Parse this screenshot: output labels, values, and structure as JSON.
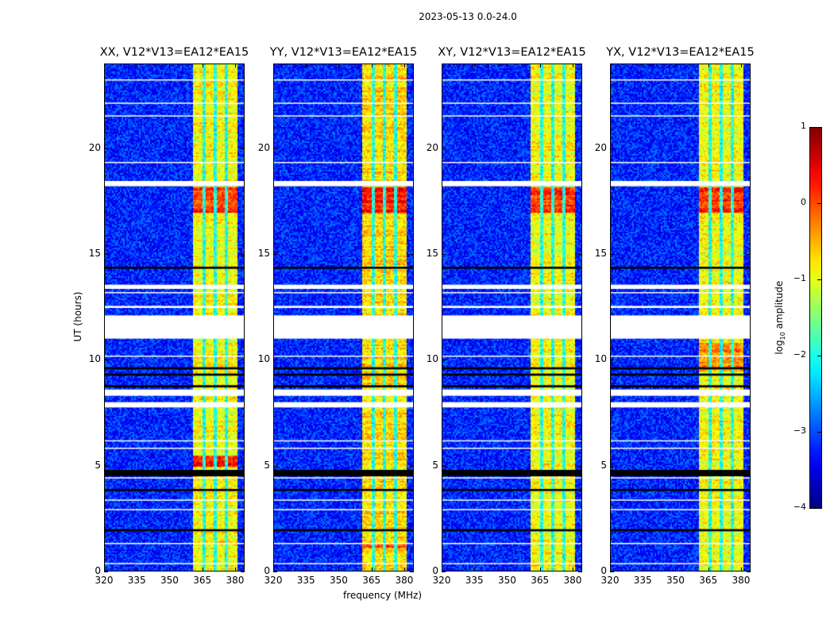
{
  "figure_title": "2023-05-13 0.0-24.0",
  "chart_data": {
    "type": "heatmap",
    "title": "2023-05-13 0.0-24.0",
    "xlabel": "frequency (MHz)",
    "ylabel": "UT (hours)",
    "xlim": [
      320,
      384.4
    ],
    "ylim": [
      0,
      24
    ],
    "xticks": [
      320,
      335,
      350,
      365,
      380
    ],
    "yticks": [
      0,
      5,
      10,
      15,
      20
    ],
    "colorbar": {
      "label_main": "log",
      "label_sub": "10",
      "label_rest": " amplitude",
      "range": [
        -4,
        1
      ],
      "ticks": [
        1,
        0,
        -1,
        -2,
        -3,
        -4
      ],
      "tick_labels": [
        "1",
        "0",
        "−1",
        "−2",
        "−3",
        "−4"
      ],
      "colormap": "jet"
    },
    "panels": [
      {
        "title": "XX, V12*V13=EA12*EA15",
        "band_level": -0.9,
        "hot_periods": [
          [
            17.0,
            18.2,
            0.1
          ],
          [
            5.0,
            5.5,
            0.2
          ]
        ]
      },
      {
        "title": "YY, V12*V13=EA12*EA15",
        "band_level": -0.7,
        "hot_periods": [
          [
            17.0,
            18.2,
            0.25
          ],
          [
            1.2,
            1.4,
            0.0
          ]
        ]
      },
      {
        "title": "XY, V12*V13=EA12*EA15",
        "band_level": -0.9,
        "hot_periods": [
          [
            17.0,
            18.2,
            0.15
          ]
        ]
      },
      {
        "title": "YX, V12*V13=EA12*EA15",
        "band_level": -0.9,
        "hot_periods": [
          [
            17.0,
            18.2,
            0.15
          ],
          [
            9.5,
            10.8,
            -0.3
          ]
        ]
      }
    ],
    "background_level": -3.2,
    "band_MHz": [
      360.7,
      380.4
    ],
    "band_notches_MHz": [
      365.5,
      370.5,
      375.6
    ],
    "flagged_hours_white": [
      [
        23.2,
        23.25
      ],
      [
        22.1,
        22.15
      ],
      [
        21.5,
        21.55
      ],
      [
        19.3,
        19.35
      ],
      [
        18.45,
        18.2
      ],
      [
        13.55,
        13.35
      ],
      [
        13.2,
        13.15
      ],
      [
        12.55,
        12.45
      ],
      [
        12.1,
        11.0
      ],
      [
        10.2,
        10.15
      ],
      [
        8.6,
        8.3
      ],
      [
        8.0,
        7.75
      ],
      [
        6.2,
        6.15
      ],
      [
        5.85,
        5.8
      ],
      [
        4.45,
        4.4
      ],
      [
        3.4,
        3.35
      ],
      [
        2.95,
        2.9
      ],
      [
        1.35,
        1.3
      ],
      [
        0.4,
        0.35
      ]
    ],
    "flagged_hours_black": [
      [
        18.3,
        18.2
      ],
      [
        14.4,
        14.3
      ],
      [
        9.65,
        9.55
      ],
      [
        9.35,
        9.25
      ],
      [
        8.8,
        8.7
      ],
      [
        4.8,
        4.5
      ],
      [
        3.9,
        3.8
      ],
      [
        2.0,
        1.9
      ]
    ]
  }
}
